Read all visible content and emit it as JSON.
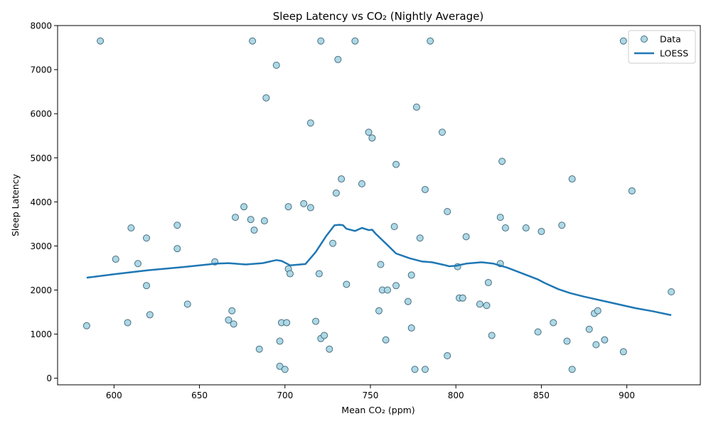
{
  "chart_data": {
    "type": "scatter",
    "title": "Sleep Latency vs CO₂ (Nightly Average)",
    "xlabel": "Mean CO₂ (ppm)",
    "ylabel": "Sleep Latency",
    "xlim": [
      567,
      943
    ],
    "ylim": [
      -150,
      8000
    ],
    "xticks": [
      600,
      650,
      700,
      750,
      800,
      850,
      900
    ],
    "yticks": [
      0,
      1000,
      2000,
      3000,
      4000,
      5000,
      6000,
      7000,
      8000
    ],
    "legend_position": "top-right",
    "grid": false,
    "colors": {
      "point_fill": "#add8e6",
      "point_edge": "#4a6f80",
      "line": "#1f77b4"
    },
    "series": [
      {
        "name": "Data",
        "kind": "scatter",
        "points": [
          [
            584,
            1190
          ],
          [
            592,
            7650
          ],
          [
            601,
            2700
          ],
          [
            608,
            1260
          ],
          [
            610,
            3410
          ],
          [
            614,
            2600
          ],
          [
            619,
            3180
          ],
          [
            619,
            2100
          ],
          [
            621,
            1440
          ],
          [
            637,
            3470
          ],
          [
            637,
            2940
          ],
          [
            643,
            1680
          ],
          [
            659,
            2640
          ],
          [
            667,
            1320
          ],
          [
            669,
            1530
          ],
          [
            670,
            1230
          ],
          [
            671,
            3650
          ],
          [
            676,
            3890
          ],
          [
            680,
            3600
          ],
          [
            681,
            7650
          ],
          [
            682,
            3360
          ],
          [
            685,
            660
          ],
          [
            688,
            3570
          ],
          [
            689,
            6360
          ],
          [
            695,
            7100
          ],
          [
            697,
            840
          ],
          [
            697,
            270
          ],
          [
            698,
            1260
          ],
          [
            700,
            200
          ],
          [
            701,
            1260
          ],
          [
            702,
            3890
          ],
          [
            702,
            2480
          ],
          [
            703,
            2370
          ],
          [
            711,
            3960
          ],
          [
            715,
            5790
          ],
          [
            715,
            3870
          ],
          [
            718,
            1290
          ],
          [
            720,
            2370
          ],
          [
            721,
            900
          ],
          [
            721,
            7650
          ],
          [
            723,
            970
          ],
          [
            726,
            660
          ],
          [
            728,
            3060
          ],
          [
            730,
            4200
          ],
          [
            731,
            7230
          ],
          [
            733,
            4520
          ],
          [
            736,
            2130
          ],
          [
            741,
            7650
          ],
          [
            745,
            4410
          ],
          [
            749,
            5580
          ],
          [
            751,
            5450
          ],
          [
            755,
            1530
          ],
          [
            756,
            2580
          ],
          [
            757,
            2000
          ],
          [
            759,
            870
          ],
          [
            760,
            2000
          ],
          [
            764,
            3440
          ],
          [
            765,
            4850
          ],
          [
            765,
            2100
          ],
          [
            772,
            1740
          ],
          [
            774,
            1140
          ],
          [
            774,
            2340
          ],
          [
            776,
            200
          ],
          [
            777,
            6150
          ],
          [
            779,
            3180
          ],
          [
            782,
            4280
          ],
          [
            782,
            200
          ],
          [
            785,
            7650
          ],
          [
            792,
            5580
          ],
          [
            795,
            3780
          ],
          [
            795,
            510
          ],
          [
            801,
            2530
          ],
          [
            802,
            1820
          ],
          [
            804,
            1820
          ],
          [
            806,
            3210
          ],
          [
            814,
            1680
          ],
          [
            818,
            1650
          ],
          [
            819,
            2170
          ],
          [
            821,
            970
          ],
          [
            826,
            3650
          ],
          [
            826,
            2600
          ],
          [
            827,
            4920
          ],
          [
            829,
            3410
          ],
          [
            841,
            3410
          ],
          [
            848,
            1050
          ],
          [
            850,
            3330
          ],
          [
            857,
            1260
          ],
          [
            862,
            3470
          ],
          [
            865,
            840
          ],
          [
            868,
            4520
          ],
          [
            868,
            200
          ],
          [
            878,
            1110
          ],
          [
            881,
            1470
          ],
          [
            882,
            760
          ],
          [
            883,
            1530
          ],
          [
            887,
            870
          ],
          [
            898,
            7650
          ],
          [
            898,
            600
          ],
          [
            903,
            4250
          ],
          [
            926,
            1960
          ]
        ]
      },
      {
        "name": "LOESS",
        "kind": "line",
        "points": [
          [
            584,
            2280
          ],
          [
            600,
            2360
          ],
          [
            620,
            2450
          ],
          [
            640,
            2520
          ],
          [
            650,
            2560
          ],
          [
            660,
            2600
          ],
          [
            667,
            2610
          ],
          [
            677,
            2580
          ],
          [
            687,
            2610
          ],
          [
            695,
            2680
          ],
          [
            698,
            2660
          ],
          [
            703,
            2560
          ],
          [
            712,
            2590
          ],
          [
            718,
            2860
          ],
          [
            724,
            3220
          ],
          [
            729,
            3470
          ],
          [
            732,
            3480
          ],
          [
            734,
            3470
          ],
          [
            736,
            3390
          ],
          [
            741,
            3340
          ],
          [
            745,
            3410
          ],
          [
            749,
            3360
          ],
          [
            751,
            3370
          ],
          [
            753,
            3280
          ],
          [
            760,
            3020
          ],
          [
            765,
            2830
          ],
          [
            773,
            2720
          ],
          [
            780,
            2650
          ],
          [
            786,
            2630
          ],
          [
            793,
            2570
          ],
          [
            796,
            2540
          ],
          [
            800,
            2550
          ],
          [
            806,
            2600
          ],
          [
            815,
            2630
          ],
          [
            822,
            2600
          ],
          [
            830,
            2510
          ],
          [
            840,
            2360
          ],
          [
            848,
            2240
          ],
          [
            852,
            2160
          ],
          [
            860,
            2020
          ],
          [
            867,
            1930
          ],
          [
            875,
            1850
          ],
          [
            890,
            1720
          ],
          [
            905,
            1590
          ],
          [
            915,
            1520
          ],
          [
            926,
            1430
          ]
        ]
      }
    ]
  }
}
